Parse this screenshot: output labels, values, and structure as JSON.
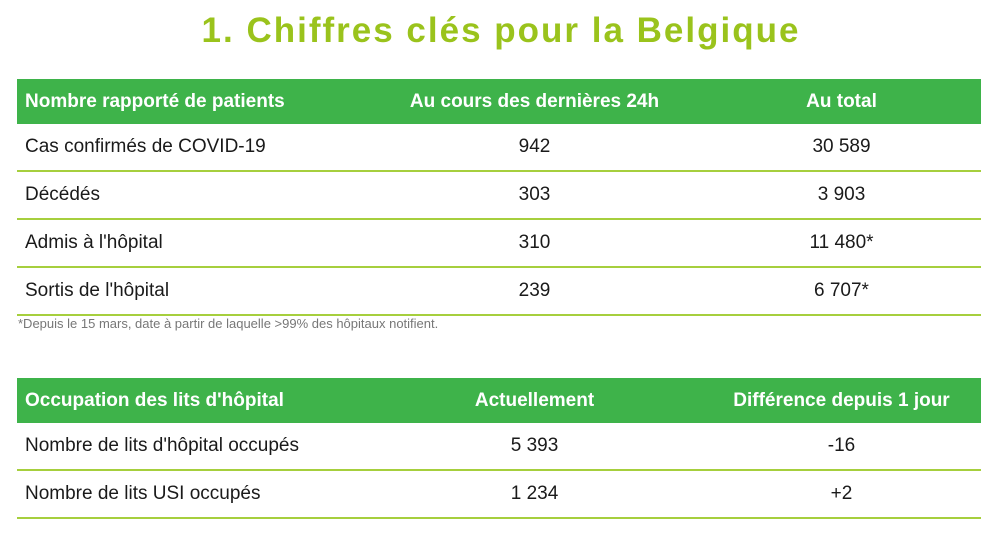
{
  "page": {
    "title": "1. Chiffres clés pour la Belgique"
  },
  "colors": {
    "title": "#9ac31c",
    "header_bg": "#3eb34a",
    "header_text": "#ffffff",
    "row_divider": "#a6cf3d",
    "footnote": "#777777"
  },
  "patients_table": {
    "headers": [
      "Nombre rapporté de patients",
      "Au cours des dernières 24h",
      "Au total"
    ],
    "rows": [
      [
        "Cas confirmés de COVID-19",
        "942",
        "30 589"
      ],
      [
        "Décédés",
        "303",
        "3 903"
      ],
      [
        "Admis à l'hôpital",
        "310",
        "11 480*"
      ],
      [
        "Sortis de l'hôpital",
        "239",
        "6 707*"
      ]
    ],
    "footnote": "*Depuis le 15 mars, date à partir de laquelle >99% des hôpitaux notifient."
  },
  "beds_table": {
    "headers": [
      "Occupation des lits d'hôpital",
      "Actuellement",
      "Différence depuis 1 jour"
    ],
    "rows": [
      [
        "Nombre de lits d'hôpital occupés",
        "5 393",
        "-16"
      ],
      [
        "Nombre de lits USI occupés",
        "1 234",
        "+2"
      ]
    ]
  }
}
